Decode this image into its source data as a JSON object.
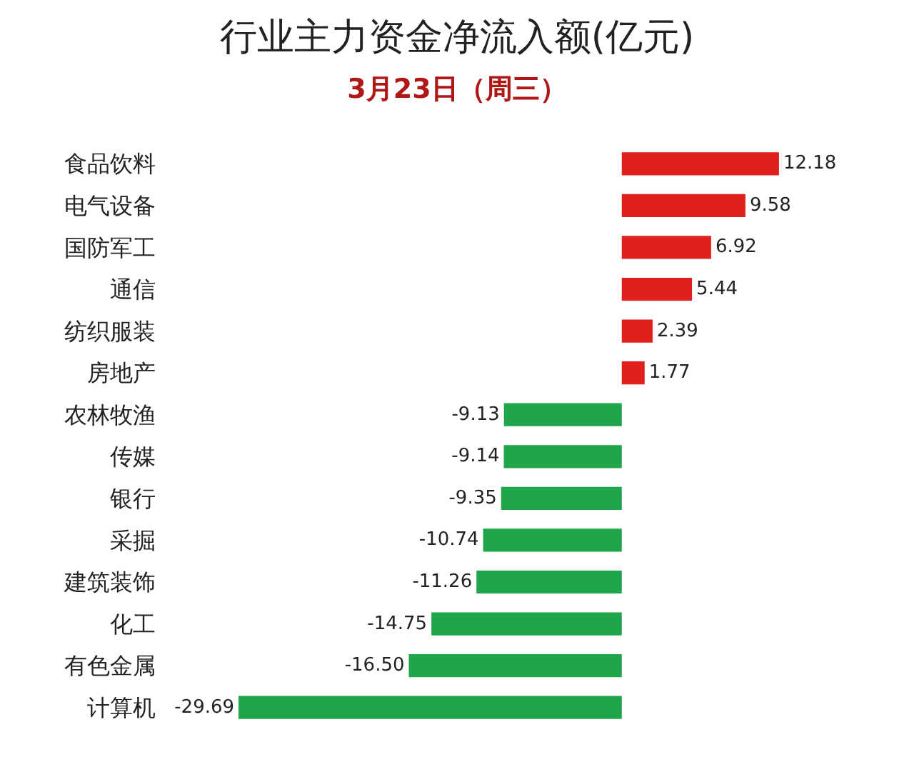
{
  "chart_data": {
    "type": "bar",
    "orientation": "horizontal",
    "title": "行业主力资金净流入额(亿元)",
    "subtitle": "3月23日（周三）",
    "categories": [
      "食品饮料",
      "电气设备",
      "国防军工",
      "通信",
      "纺织服装",
      "房地产",
      "农林牧渔",
      "传媒",
      "银行",
      "采掘",
      "建筑装饰",
      "化工",
      "有色金属",
      "计算机"
    ],
    "values": [
      12.18,
      9.58,
      6.92,
      5.44,
      2.39,
      1.77,
      -9.13,
      -9.14,
      -9.35,
      -10.74,
      -11.26,
      -14.75,
      -16.5,
      -29.69
    ],
    "value_labels": [
      "12.18",
      "9.58",
      "6.92",
      "5.44",
      "2.39",
      "1.77",
      "-9.13",
      "-9.14",
      "-9.35",
      "-10.74",
      "-11.26",
      "-14.75",
      "-16.50",
      "-29.69"
    ],
    "colors": [
      "#e0201c",
      "#e0201c",
      "#e0201c",
      "#e0201c",
      "#e0201c",
      "#e0201c",
      "#1fa64a",
      "#1fa64a",
      "#1fa64a",
      "#1fa64a",
      "#1fa64a",
      "#1fa64a",
      "#1fa64a",
      "#1fa64a"
    ],
    "data_labels": true
  }
}
